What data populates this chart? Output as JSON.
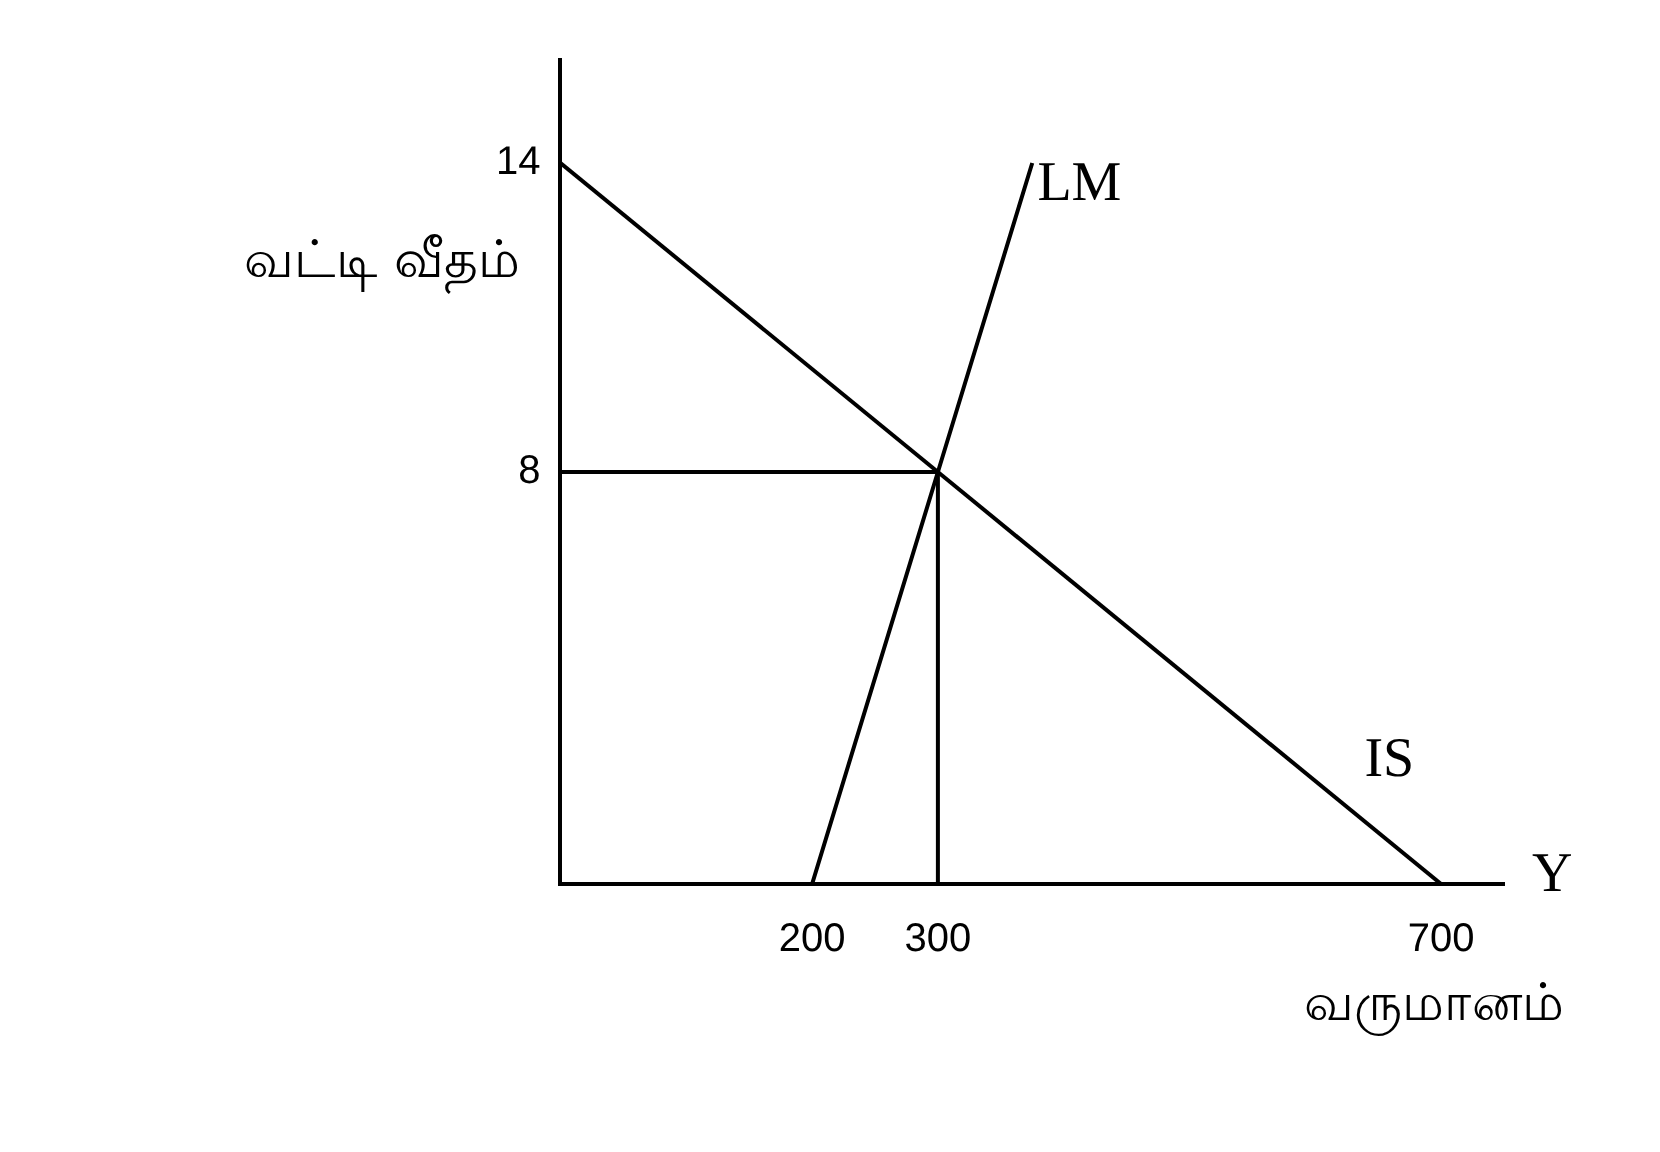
{
  "chart_data": {
    "type": "line",
    "xlabel": "வருமானம்",
    "ylabel": "வட்டி வீதம்",
    "annotations": [
      "Y"
    ],
    "series": [
      {
        "name": "IS",
        "color": "#000000",
        "x": [
          0,
          300,
          700
        ],
        "values": [
          14,
          8,
          0
        ]
      },
      {
        "name": "LM",
        "color": "#000000",
        "x": [
          200,
          300,
          375
        ],
        "values": [
          0,
          8,
          14
        ]
      },
      {
        "color": "#000000",
        "x": [
          0,
          300
        ],
        "values": [
          8,
          8
        ]
      },
      {
        "color": "#000000",
        "x": [
          300,
          300
        ],
        "values": [
          0,
          8
        ]
      }
    ],
    "xlim": [
      0,
      750
    ],
    "ylim": [
      0,
      16
    ],
    "xticks": [
      200,
      300,
      700
    ],
    "yticks": [
      8,
      14
    ],
    "grid": false,
    "legend": false,
    "marker": "none",
    "line_style": "solid"
  }
}
